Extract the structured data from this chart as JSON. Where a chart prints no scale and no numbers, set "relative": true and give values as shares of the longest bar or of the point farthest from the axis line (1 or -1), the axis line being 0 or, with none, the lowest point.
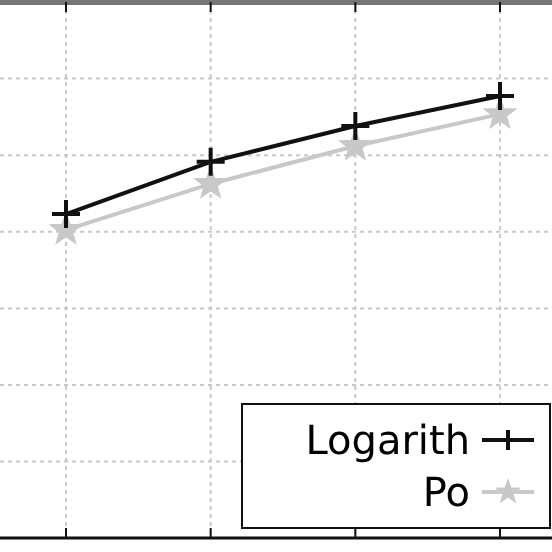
{
  "chart_data": {
    "type": "line",
    "relative": true,
    "categories": [
      null,
      null,
      null,
      null
    ],
    "series": [
      {
        "name": "Logarith",
        "color": "#111111",
        "marker": "cross",
        "values": [
          0.733,
          0.851,
          0.932,
          1
        ]
      },
      {
        "name": "Po",
        "color": "#c8c8c8",
        "marker": "star",
        "values": [
          0.697,
          0.801,
          0.887,
          0.959
        ]
      }
    ],
    "grid": true,
    "legend": "bottom right",
    "line_style": "solid"
  }
}
